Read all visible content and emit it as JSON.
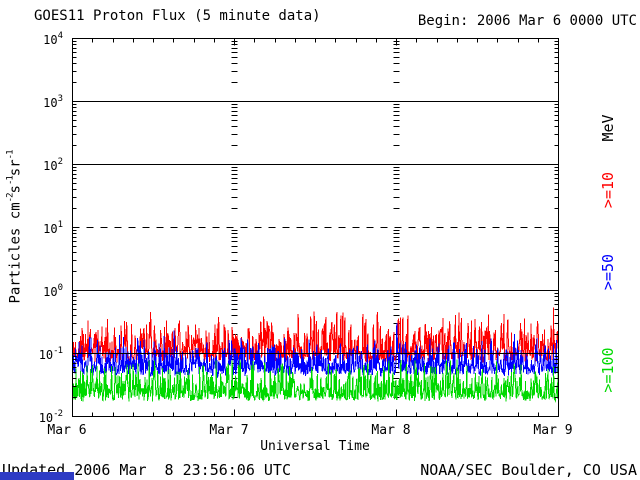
{
  "header": {
    "title": "GOES11 Proton Flux (5 minute data)",
    "begin": "Begin: 2006 Mar 6 0000 UTC"
  },
  "footer": {
    "updated": "Updated 2006 Mar  8 23:56:06 UTC",
    "credit": "NOAA/SEC Boulder, CO USA"
  },
  "colors": {
    "red": "#FF0000",
    "blue": "#0000FF",
    "green": "#00D900",
    "axis": "#000000",
    "artifact_blue": "#2E3BC4"
  },
  "artifact_bar": {
    "description": "partially rendered blue block at bottom-left corner",
    "color_key": "artifact_blue"
  },
  "chart_data": {
    "type": "line",
    "title": "GOES11 Proton Flux (5 minute data)",
    "xlabel": "Universal Time",
    "ylabel": "Particles cm-2 s-1 sr-1",
    "ylabel_segments": [
      {
        "text": "Particles cm"
      },
      {
        "sup": "-2"
      },
      {
        "text": "s"
      },
      {
        "sup": "-1"
      },
      {
        "text": "sr"
      },
      {
        "sup": "-1"
      }
    ],
    "x_ticks": [
      "Mar 6",
      "Mar 7",
      "Mar 8",
      "Mar 9"
    ],
    "x_axis_days": 3,
    "minor_ticks_per_day": 8,
    "y_decades": [
      4,
      3,
      2,
      1,
      0,
      -1,
      -2
    ],
    "ylim": [
      0.01,
      10000
    ],
    "grid": "horizontal solid lines at each decade, dashed event-threshold line at 10",
    "threshold": {
      "value": 10,
      "value_exponent": 1,
      "style": "dashed"
    },
    "units_label": "MeV",
    "right_axis_labels": [
      {
        "text": "MeV",
        "color_key": "axis"
      },
      {
        "text": ">=10",
        "color_key": "red"
      },
      {
        "text": ">=50",
        "color_key": "blue"
      },
      {
        "text": ">=100",
        "color_key": "green"
      }
    ],
    "series": [
      {
        "label": ">=10",
        "energy": ">=10 MeV",
        "color_key": "red",
        "approx_min": 0.09,
        "approx_median": 0.15,
        "approx_max": 0.5,
        "log_base": -1.08,
        "log_amp": 0.85,
        "seed": 101
      },
      {
        "label": ">=50",
        "energy": ">=50 MeV",
        "color_key": "blue",
        "approx_min": 0.05,
        "approx_median": 0.09,
        "approx_max": 0.24,
        "log_base": -1.3,
        "log_amp": 0.68,
        "seed": 202
      },
      {
        "label": ">=100",
        "energy": ">=100 MeV",
        "color_key": "green",
        "approx_min": 0.02,
        "approx_median": 0.045,
        "approx_max": 0.1,
        "log_base": -1.7,
        "log_amp": 0.7,
        "seed": 303
      }
    ],
    "points_per_series": 972
  }
}
